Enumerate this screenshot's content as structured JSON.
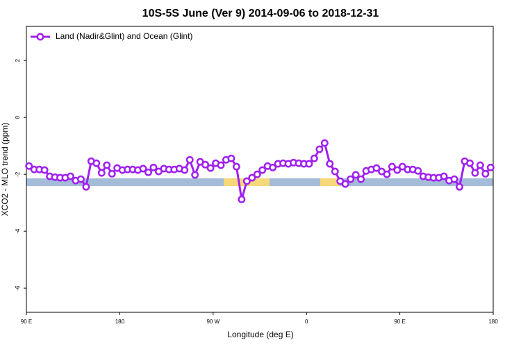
{
  "chart_data": {
    "type": "line",
    "title": "10S-5S June (Ver 9)   2014-09-06 to 2018-12-31",
    "xlabel": "Longitude (deg E)",
    "ylabel": "XCO2 - MLO trend (ppm)",
    "xlim": [
      90,
      540
    ],
    "xticks": [
      {
        "value": 90,
        "label": "90 E"
      },
      {
        "value": 180,
        "label": "180"
      },
      {
        "value": 270,
        "label": "90 W"
      },
      {
        "value": 360,
        "label": "0"
      },
      {
        "value": 450,
        "label": "90 E"
      },
      {
        "value": 540,
        "label": "180"
      }
    ],
    "ylim": [
      -6.85,
      3.2
    ],
    "yticks": [
      2,
      0,
      -2,
      -4,
      -6
    ],
    "legend": "upper left",
    "x": [
      92.5,
      97.5,
      102.5,
      107.5,
      112.5,
      117.5,
      122.5,
      127.5,
      132.5,
      137.5,
      142.5,
      147.5,
      152.5,
      157.5,
      162.5,
      167.5,
      172.5,
      177.5,
      182.5,
      187.5,
      192.5,
      197.5,
      202.5,
      207.5,
      212.5,
      217.5,
      222.5,
      227.5,
      232.5,
      237.5,
      242.5,
      247.5,
      252.5,
      257.5,
      262.5,
      267.5,
      272.5,
      277.5,
      282.5,
      287.5,
      292.5,
      297.5,
      302.5,
      307.5,
      312.5,
      317.5,
      322.5,
      327.5,
      332.5,
      337.5,
      342.5,
      347.5,
      352.5,
      357.5,
      362.5,
      367.5,
      372.5,
      377.5,
      382.5,
      387.5,
      392.5,
      397.5,
      402.5,
      407.5,
      412.5,
      417.5,
      422.5,
      427.5,
      432.5,
      437.5,
      442.5,
      447.5,
      452.5,
      457.5,
      462.5,
      467.5,
      472.5,
      477.5,
      482.5,
      487.5,
      492.5,
      497.5,
      502.5,
      507.5,
      512.5,
      517.5,
      522.5,
      527.5,
      532.5,
      537.5
    ],
    "series": [
      {
        "name": "Land (Nadir&Glint) and Ocean (Glint)",
        "color": "#a020f0",
        "values": [
          -1.71,
          -1.83,
          -1.83,
          -1.85,
          -2.07,
          -2.1,
          -2.12,
          -2.12,
          -2.07,
          -2.22,
          -2.17,
          -2.44,
          -1.54,
          -1.61,
          -1.95,
          -1.68,
          -1.98,
          -1.78,
          -1.85,
          -1.83,
          -1.83,
          -1.85,
          -1.8,
          -1.93,
          -1.76,
          -1.9,
          -1.8,
          -1.83,
          -1.83,
          -1.8,
          -1.85,
          -1.49,
          -2.02,
          -1.56,
          -1.66,
          -1.78,
          -1.61,
          -1.68,
          -1.49,
          -1.44,
          -1.73,
          -2.88,
          -2.24,
          -2.12,
          -2.0,
          -1.85,
          -1.71,
          -1.76,
          -1.63,
          -1.61,
          -1.63,
          -1.59,
          -1.61,
          -1.63,
          -1.63,
          -1.44,
          -1.12,
          -0.9,
          -1.63,
          -1.9,
          -2.24,
          -2.34,
          -2.17,
          -2.02,
          -2.17,
          -1.88,
          -1.83,
          -1.78,
          -1.9,
          -2.0,
          -1.73,
          -1.85,
          -1.73,
          -1.83,
          -1.83,
          -1.88,
          -2.07,
          -2.1,
          -2.12,
          -2.12,
          -2.07,
          -2.22,
          -2.17,
          -2.44,
          -1.54,
          -1.61,
          -1.95,
          -1.68,
          -1.98,
          -1.76
        ]
      }
    ]
  }
}
